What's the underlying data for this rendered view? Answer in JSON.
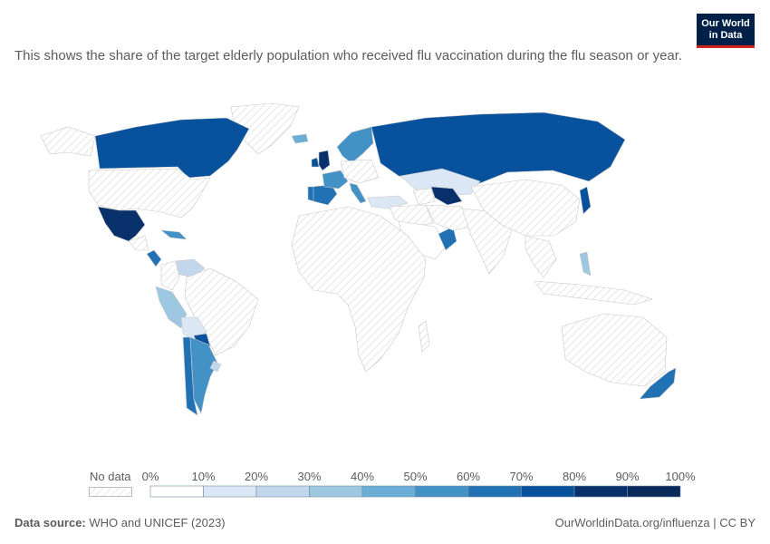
{
  "header": {
    "subtitle": "This shows the share of the target elderly population who received flu vaccination during the flu season or year.",
    "logo_line1": "Our World",
    "logo_line2": "in Data"
  },
  "legend": {
    "no_data_label": "No data",
    "ticks": [
      "0%",
      "10%",
      "20%",
      "30%",
      "40%",
      "50%",
      "60%",
      "70%",
      "80%",
      "90%",
      "100%"
    ],
    "bin_colors": [
      "#ffffff",
      "#dbe7f4",
      "#c3d7ec",
      "#9ec8e1",
      "#6aaed6",
      "#4292c6",
      "#2171b5",
      "#08519c",
      "#08306b",
      "#082a5a"
    ],
    "no_data_color": "#ececec"
  },
  "map_data": {
    "type": "choropleth",
    "metric": "share of target elderly population vaccinated against flu",
    "regions": [
      {
        "name": "Canada",
        "bin": 7
      },
      {
        "name": "United States",
        "bin": null
      },
      {
        "name": "Mexico",
        "bin": 8
      },
      {
        "name": "Greenland",
        "bin": null
      },
      {
        "name": "Iceland",
        "bin": 4
      },
      {
        "name": "United Kingdom",
        "bin": 8
      },
      {
        "name": "Ireland",
        "bin": 7
      },
      {
        "name": "Spain",
        "bin": 6
      },
      {
        "name": "Portugal",
        "bin": 6
      },
      {
        "name": "France",
        "bin": 5
      },
      {
        "name": "Italy",
        "bin": 5
      },
      {
        "name": "Scandinavia",
        "bin": 5
      },
      {
        "name": "Russia",
        "bin": 7
      },
      {
        "name": "Kazakhstan",
        "bin": 1
      },
      {
        "name": "Uzbekistan",
        "bin": 8
      },
      {
        "name": "Turkey",
        "bin": 1
      },
      {
        "name": "Saudi Arabia",
        "bin": 0
      },
      {
        "name": "Oman",
        "bin": 6
      },
      {
        "name": "Japan",
        "bin": 7
      },
      {
        "name": "Philippines",
        "bin": 3
      },
      {
        "name": "Venezuela",
        "bin": 2
      },
      {
        "name": "Peru",
        "bin": 3
      },
      {
        "name": "Bolivia",
        "bin": 1
      },
      {
        "name": "Chile",
        "bin": 6
      },
      {
        "name": "Argentina",
        "bin": 5
      },
      {
        "name": "Uruguay",
        "bin": 2
      },
      {
        "name": "Paraguay",
        "bin": 7
      },
      {
        "name": "New Zealand",
        "bin": 6
      },
      {
        "name": "Costa Rica",
        "bin": 6
      },
      {
        "name": "Cuba",
        "bin": 5
      }
    ]
  },
  "footer": {
    "source_label": "Data source:",
    "source_text": "WHO and UNICEF (2023)",
    "url_text": "OurWorldinData.org/influenza",
    "license_text": "CC BY"
  }
}
